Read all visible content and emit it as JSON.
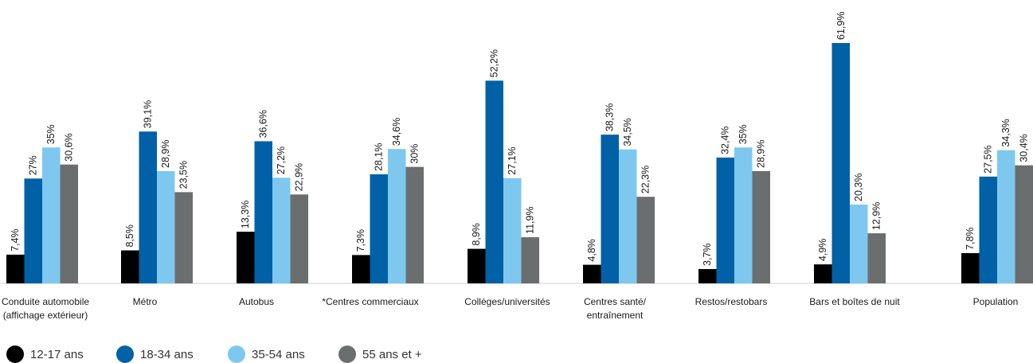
{
  "chart_data": {
    "type": "bar",
    "categories": [
      [
        "Conduite automobile",
        "(affichage extérieur)"
      ],
      [
        "Métro"
      ],
      [
        "Autobus"
      ],
      [
        "*Centres commerciaux"
      ],
      [
        "Collèges/universités"
      ],
      [
        "Centres santé/",
        "entraînement"
      ],
      [
        "Restos/restobars"
      ],
      [
        "Bars et boîtes de nuit"
      ],
      [
        "Population"
      ]
    ],
    "series": [
      {
        "name": "12-17 ans",
        "color": "#000000",
        "values": [
          7.4,
          8.5,
          13.3,
          7.3,
          8.9,
          4.8,
          3.7,
          4.9,
          7.8
        ],
        "labels": [
          "7,4%",
          "8,5%",
          "13,3%",
          "7,3%",
          "8,9%",
          "4,8%",
          "3,7%",
          "4,9%",
          "7,8%"
        ]
      },
      {
        "name": "18-34 ans",
        "color": "#0061a6",
        "values": [
          27,
          39.1,
          36.6,
          28.1,
          52.2,
          38.3,
          32.4,
          61.9,
          27.5
        ],
        "labels": [
          "27%",
          "39,1%",
          "36,6%",
          "28,1%",
          "52,2%",
          "38,3%",
          "32,4%",
          "61,9%",
          "27,5%"
        ]
      },
      {
        "name": "35-54 ans",
        "color": "#7ec8ef",
        "values": [
          35,
          28.9,
          27.2,
          34.6,
          27.1,
          34.5,
          35,
          20.3,
          34.3
        ],
        "labels": [
          "35%",
          "28,9%",
          "27,2%",
          "34,6%",
          "27,1%",
          "34,5%",
          "35%",
          "20,3%",
          "34,3%"
        ]
      },
      {
        "name": "55 ans et +",
        "color": "#6b6e6e",
        "values": [
          30.6,
          23.5,
          22.9,
          30,
          11.9,
          22.3,
          28.9,
          12.9,
          30.4
        ],
        "labels": [
          "30,6%",
          "23,5%",
          "22,9%",
          "30%",
          "11,9%",
          "22,3%",
          "28,9%",
          "12,9%",
          "30,4%"
        ]
      }
    ],
    "ylim": [
      0,
      65
    ],
    "grid": false,
    "legend_position": "bottom-left"
  }
}
